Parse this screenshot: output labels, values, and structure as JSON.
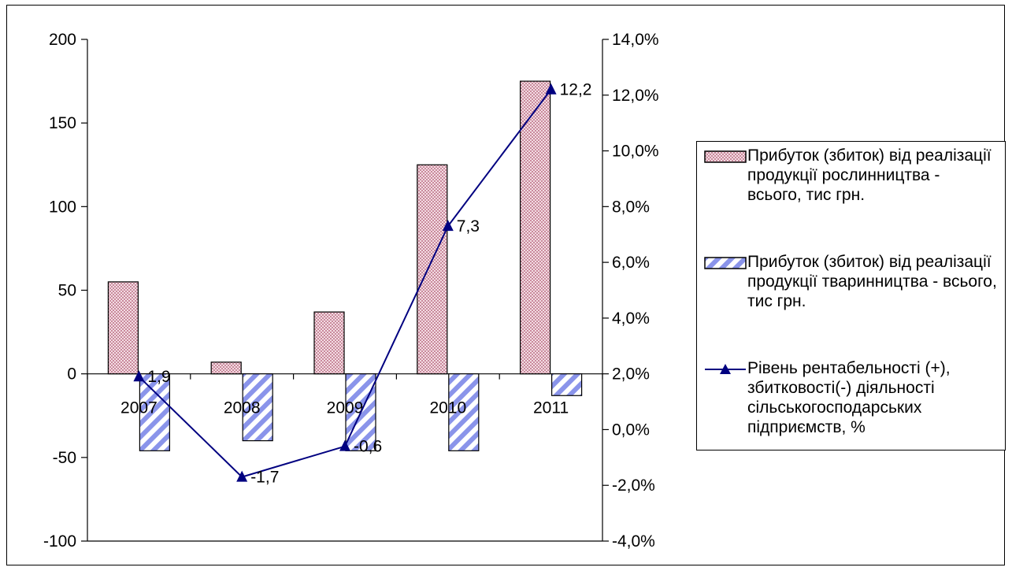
{
  "chart_data": {
    "type": "bar",
    "categories": [
      "2007",
      "2008",
      "2009",
      "2010",
      "2011"
    ],
    "series": [
      {
        "name": "Прибуток (збиток)  від реалізації продукції рослинництва - всього, тис грн.",
        "type": "bar",
        "axis": "left",
        "values": [
          55,
          7,
          37,
          125,
          175
        ],
        "color": "#d9a6b4",
        "pattern": "checker"
      },
      {
        "name": "Прибуток (збиток) від реалізації продукції тваринництва - всього, тис грн.",
        "type": "bar",
        "axis": "left",
        "values": [
          -46,
          -40,
          -46,
          -46,
          -13
        ],
        "color": "#8a94ea",
        "pattern": "diagonal"
      },
      {
        "name": "Рівень рентабельності (+), збитковості(-) діяльності сільськогосподарських підприємств, %",
        "type": "line",
        "axis": "right",
        "values": [
          1.9,
          -1.7,
          -0.6,
          7.3,
          12.2
        ],
        "labels": [
          "1,9",
          "-1,7",
          "-0,6",
          "7,3",
          "12,2"
        ],
        "color": "#000080",
        "marker": "triangle"
      }
    ],
    "y_left": {
      "ylim": [
        -100,
        200
      ],
      "ticks": [
        200,
        150,
        100,
        50,
        0,
        -50,
        -100
      ],
      "tick_labels": [
        "200",
        "150",
        "100",
        "50",
        "0",
        "-50",
        "-100"
      ]
    },
    "y_right": {
      "ylim": [
        -4,
        14
      ],
      "ticks": [
        14,
        12,
        10,
        8,
        6,
        4,
        2,
        0,
        -2,
        -4
      ],
      "tick_labels": [
        "14,0%",
        "12,0%",
        "10,0%",
        "8,0%",
        "6,0%",
        "4,0%",
        "2,0%",
        "0,0%",
        "-2,0%",
        "-4,0%"
      ]
    },
    "grid": false,
    "legend_position": "right"
  }
}
